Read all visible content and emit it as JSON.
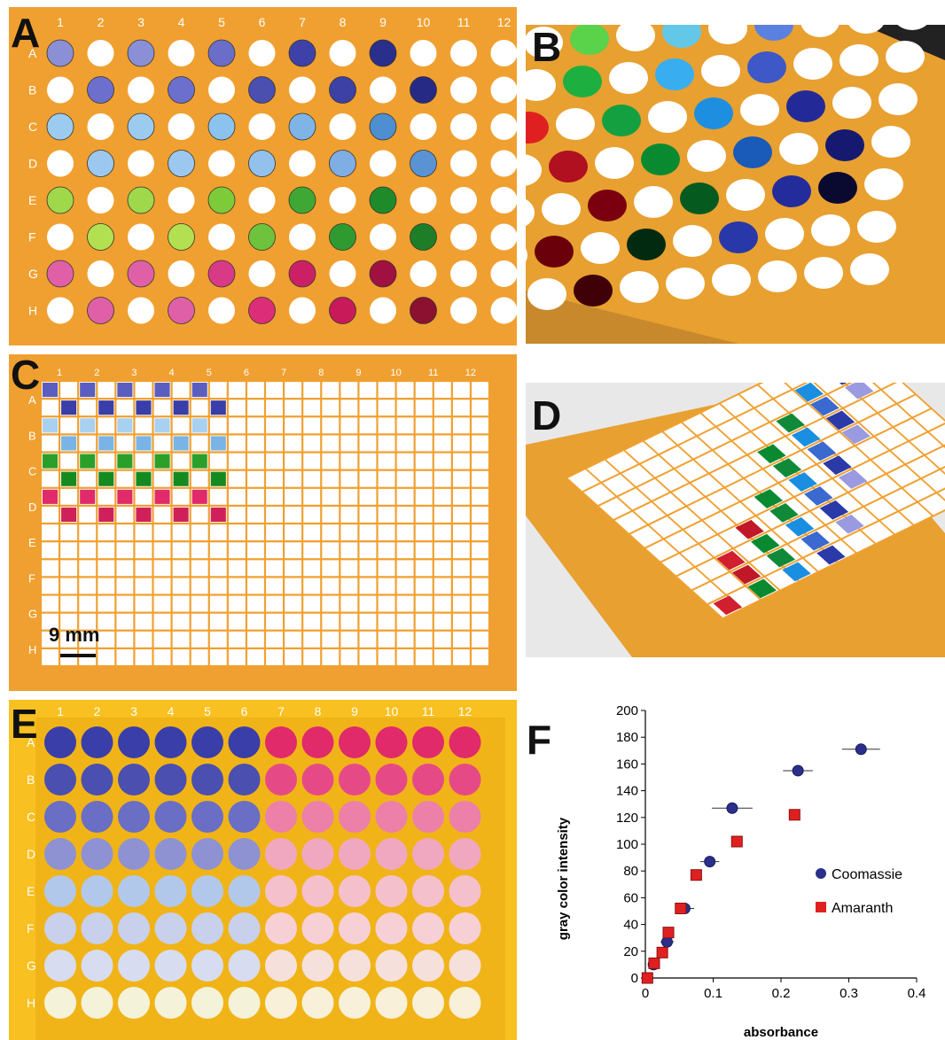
{
  "figure": {
    "panels": {
      "A": {
        "label": "A",
        "columns": [
          "1",
          "2",
          "3",
          "4",
          "5",
          "6",
          "7",
          "8",
          "9",
          "10",
          "11",
          "12"
        ],
        "rows": [
          "A",
          "B",
          "C",
          "D",
          "E",
          "F",
          "G",
          "H"
        ]
      },
      "B": {
        "label": "B"
      },
      "C": {
        "label": "C",
        "scale_bar": "9 mm",
        "columns": [
          "1",
          "2",
          "3",
          "4",
          "5",
          "6",
          "7",
          "8",
          "9",
          "10",
          "11",
          "12"
        ],
        "rows": [
          "A",
          "B",
          "C",
          "D",
          "E",
          "F",
          "G",
          "H"
        ]
      },
      "D": {
        "label": "D"
      },
      "E": {
        "label": "E",
        "columns": [
          "1",
          "2",
          "3",
          "4",
          "5",
          "6",
          "7",
          "8",
          "9",
          "10",
          "11",
          "12"
        ],
        "rows": [
          "A",
          "B",
          "C",
          "D",
          "E",
          "F",
          "G",
          "H"
        ]
      },
      "F": {
        "label": "F"
      }
    },
    "colors": {
      "plate_orange": "#f0a030",
      "plate_yellow": "#f8c020",
      "coomassie": "#2a2f8c",
      "amaranth": "#e02020",
      "green": "#2a9a2a",
      "magenta": "#d8206a",
      "light_blue": "#79b6e8"
    }
  },
  "chart_data": {
    "type": "scatter",
    "xlabel": "absorbance",
    "ylabel": "gray  color intensity",
    "xlim": [
      0,
      0.4
    ],
    "ylim": [
      0,
      200
    ],
    "xticks": [
      "0",
      "0.1",
      "0.2",
      "0.3",
      "0.4"
    ],
    "yticks": [
      "0",
      "20",
      "40",
      "60",
      "80",
      "100",
      "120",
      "140",
      "160",
      "180",
      "200"
    ],
    "legend_position": "right",
    "series": [
      {
        "name": "Coomassie",
        "color": "#2a2f8c",
        "marker": "circle",
        "x": [
          0.003,
          0.012,
          0.032,
          0.058,
          0.095,
          0.128,
          0.225,
          0.318
        ],
        "y": [
          0,
          10,
          27,
          52,
          87,
          127,
          155,
          171
        ],
        "xerr": [
          0.003,
          0.006,
          0.01,
          0.014,
          0.014,
          0.03,
          0.022,
          0.028
        ]
      },
      {
        "name": "Amaranth",
        "color": "#e02020",
        "marker": "square",
        "x": [
          0.003,
          0.013,
          0.025,
          0.034,
          0.052,
          0.075,
          0.135,
          0.22
        ],
        "y": [
          0,
          11,
          19,
          34,
          52,
          77,
          102,
          122
        ],
        "xerr": [
          0.002,
          0.003,
          0.003,
          0.004,
          0.006,
          0.006,
          0.006,
          0.004
        ]
      }
    ]
  }
}
